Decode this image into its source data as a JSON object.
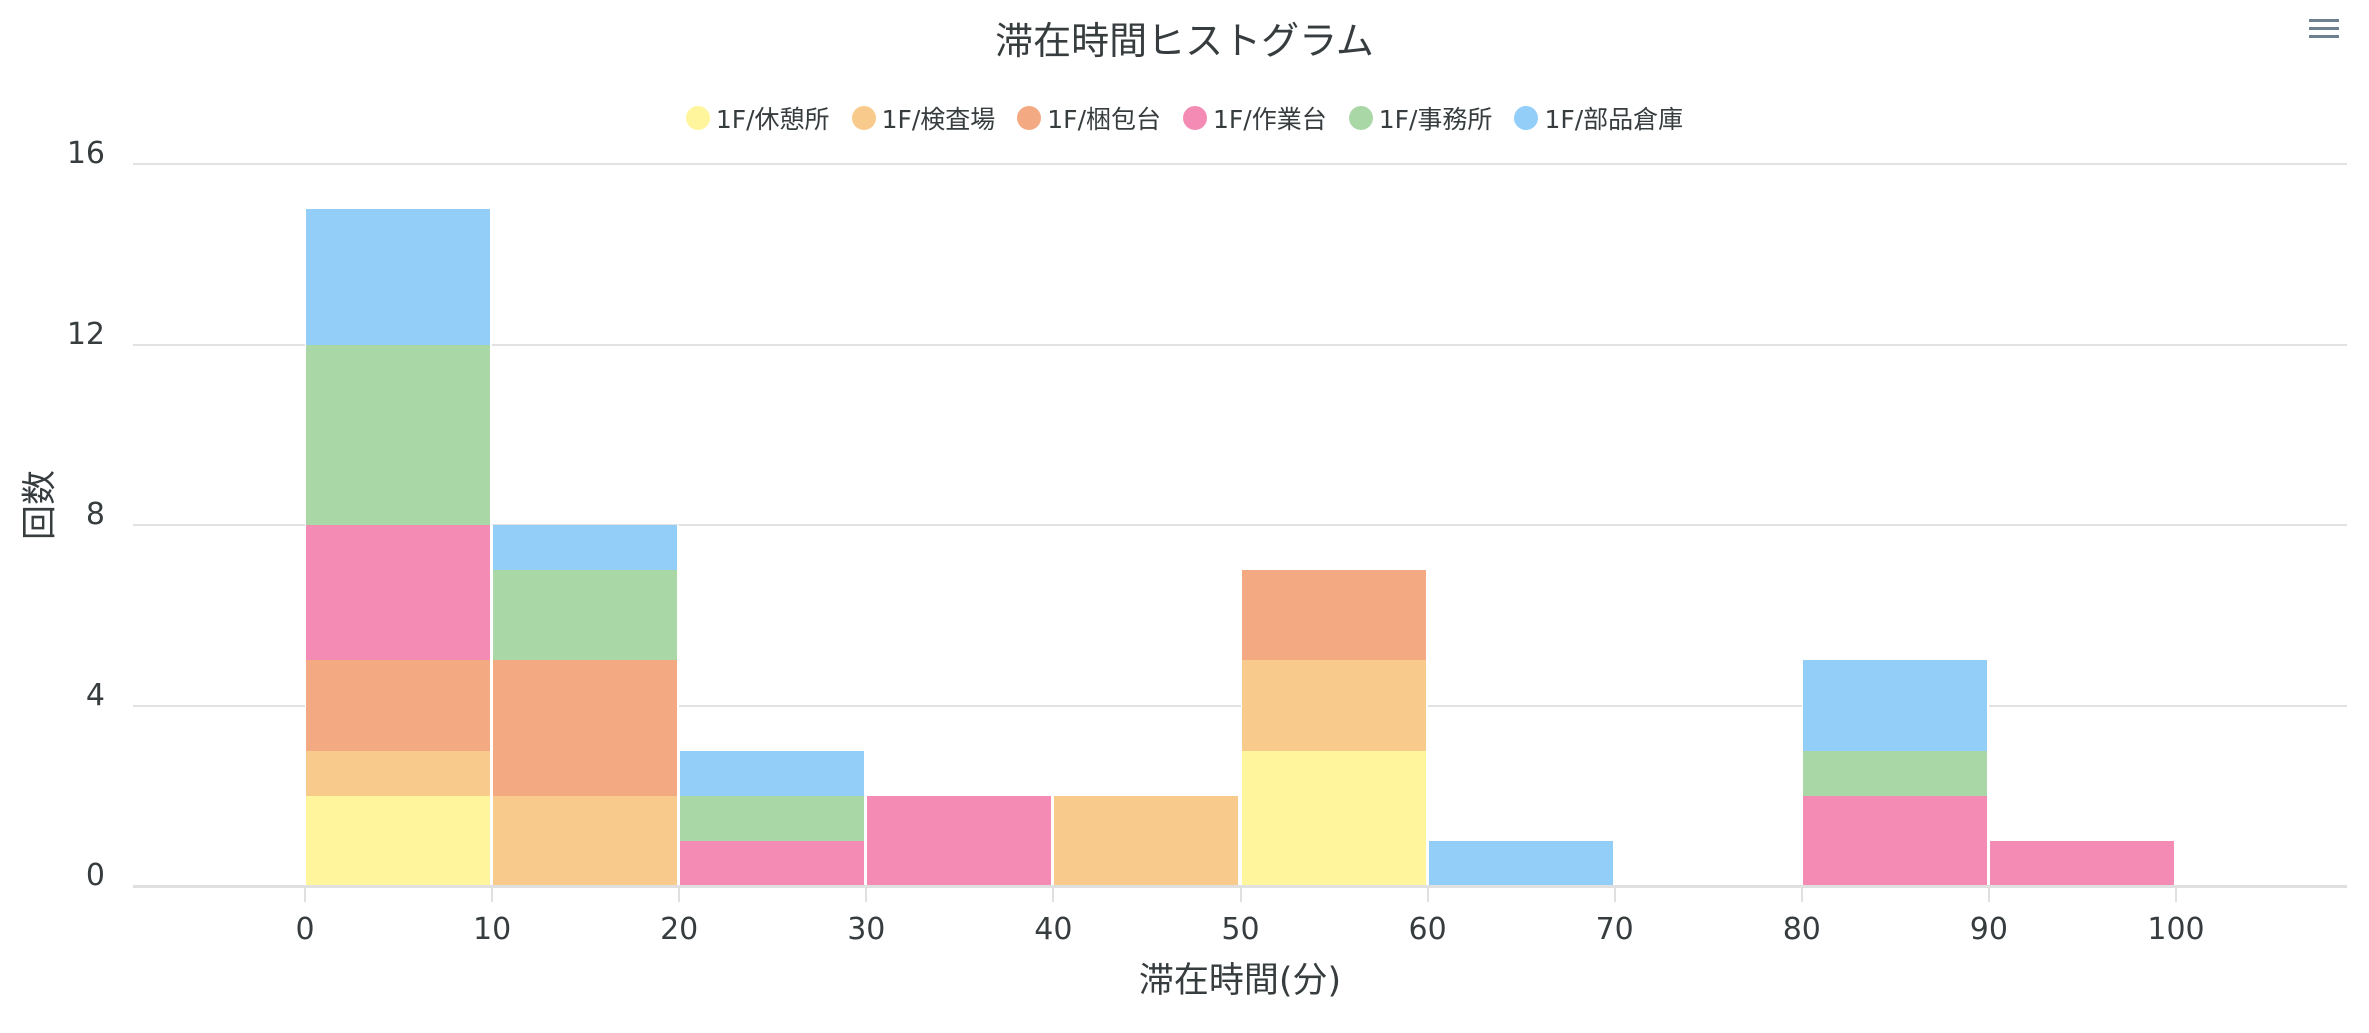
{
  "chart_data": {
    "type": "bar",
    "subtype": "stacked-histogram",
    "title": "滞在時間ヒストグラム",
    "xlabel": "滞在時間(分)",
    "ylabel": "回数",
    "ylim": [
      0,
      16
    ],
    "xlim": [
      -9.2,
      109.1
    ],
    "yticks": [
      0,
      4,
      8,
      12,
      16
    ],
    "xticks": [
      0,
      10,
      20,
      30,
      40,
      50,
      60,
      70,
      80,
      90,
      100
    ],
    "bin_width": 10,
    "categories": [
      "0-10",
      "10-20",
      "20-30",
      "30-40",
      "40-50",
      "50-60",
      "60-70",
      "70-80",
      "80-90",
      "90-100"
    ],
    "bin_starts": [
      0,
      10,
      20,
      30,
      40,
      50,
      60,
      70,
      80,
      90
    ],
    "series": [
      {
        "name": "1F/休憩所",
        "color": "#FFF59D",
        "values": [
          2,
          0,
          0,
          0,
          0,
          3,
          0,
          0,
          0,
          0
        ]
      },
      {
        "name": "1F/検査場",
        "color": "#F8CB8C",
        "values": [
          1,
          2,
          0,
          0,
          2,
          2,
          0,
          0,
          0,
          0
        ]
      },
      {
        "name": "1F/梱包台",
        "color": "#F3A981",
        "values": [
          2,
          3,
          0,
          0,
          0,
          2,
          0,
          0,
          0,
          0
        ]
      },
      {
        "name": "1F/作業台",
        "color": "#F38BB4",
        "values": [
          3,
          0,
          1,
          2,
          0,
          0,
          0,
          0,
          2,
          1
        ]
      },
      {
        "name": "1F/事務所",
        "color": "#A9D7A6",
        "values": [
          4,
          2,
          1,
          0,
          0,
          0,
          0,
          0,
          1,
          0
        ]
      },
      {
        "name": "1F/部品倉庫",
        "color": "#93CEF9",
        "values": [
          3,
          1,
          1,
          0,
          0,
          0,
          1,
          0,
          2,
          0
        ]
      }
    ],
    "totals": [
      15,
      8,
      3,
      2,
      2,
      7,
      1,
      0,
      5,
      1
    ],
    "grid": true,
    "legend_position": "top"
  },
  "toolbar": {
    "menu_icon": "hamburger-menu-icon"
  }
}
